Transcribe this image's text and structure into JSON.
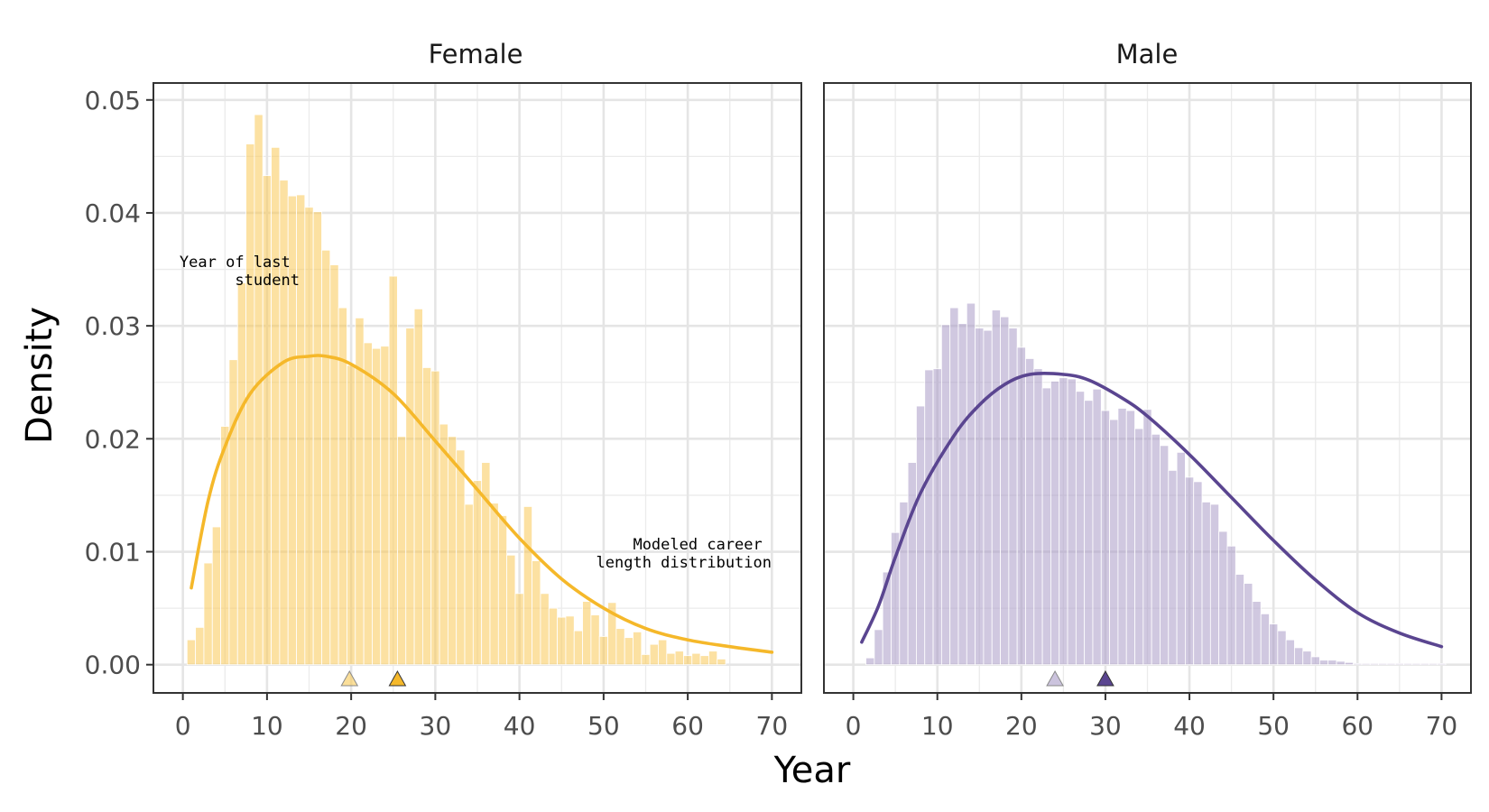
{
  "chart_data": {
    "type": "histogram",
    "xlabel": "Year",
    "ylabel": "Density",
    "xlim": [
      -3.5,
      73.5
    ],
    "ylim": [
      -0.0025,
      0.0515
    ],
    "x_ticks": [
      0,
      10,
      20,
      30,
      40,
      50,
      60,
      70
    ],
    "y_ticks": [
      0.0,
      0.01,
      0.02,
      0.03,
      0.04,
      0.05
    ],
    "x_tick_labels": [
      "0",
      "10",
      "20",
      "30",
      "40",
      "50",
      "60",
      "70"
    ],
    "y_tick_labels": [
      "0.00",
      "0.01",
      "0.02",
      "0.03",
      "0.04",
      "0.05"
    ],
    "annotations": {
      "last_student": [
        "Year of last",
        "student"
      ],
      "modeled": [
        "Modeled career",
        "length distribution"
      ]
    },
    "panels": [
      {
        "name": "Female",
        "bar_color": "#f9c956",
        "line_color": "#f5b82a",
        "bins_start": 1,
        "bin_width": 1,
        "densities": [
          0.0022,
          0.0033,
          0.009,
          0.0122,
          0.0211,
          0.027,
          0.0338,
          0.0461,
          0.0487,
          0.0433,
          0.0458,
          0.0429,
          0.0415,
          0.0416,
          0.0405,
          0.0401,
          0.0367,
          0.0354,
          0.0316,
          0.0265,
          0.0307,
          0.0285,
          0.028,
          0.0282,
          0.0344,
          0.0202,
          0.0298,
          0.0315,
          0.0263,
          0.026,
          0.0213,
          0.0202,
          0.019,
          0.0142,
          0.0163,
          0.0179,
          0.0143,
          0.0132,
          0.0097,
          0.0063,
          0.014,
          0.0092,
          0.0063,
          0.005,
          0.0042,
          0.0043,
          0.003,
          0.0056,
          0.0044,
          0.0025,
          0.0055,
          0.0032,
          0.0024,
          0.0029,
          0.0009,
          0.0018,
          0.0022,
          0.001,
          0.0012,
          0.0008,
          0.001,
          0.0008,
          0.0012,
          0.0005
        ],
        "curve": {
          "x": [
            1,
            3,
            5,
            8,
            12,
            15,
            17,
            20,
            25,
            30,
            35,
            40,
            45,
            50,
            55,
            60,
            65,
            70
          ],
          "y": [
            0.0068,
            0.0145,
            0.0193,
            0.024,
            0.0268,
            0.0273,
            0.0273,
            0.0266,
            0.024,
            0.0198,
            0.0155,
            0.0112,
            0.0076,
            0.005,
            0.0032,
            0.0022,
            0.0016,
            0.0011
          ]
        },
        "markers": [
          {
            "x": 19.8,
            "kind": "light"
          },
          {
            "x": 25.5,
            "kind": "dark"
          }
        ]
      },
      {
        "name": "Male",
        "bar_color": "#a99bc6",
        "line_color": "#5a4590",
        "bins_start": 2,
        "bin_width": 1,
        "densities": [
          0.0006,
          0.0031,
          0.0082,
          0.0117,
          0.0144,
          0.0179,
          0.0229,
          0.0261,
          0.0262,
          0.0301,
          0.0316,
          0.0302,
          0.032,
          0.0298,
          0.0296,
          0.0314,
          0.0308,
          0.0298,
          0.0281,
          0.0271,
          0.0262,
          0.0245,
          0.0251,
          0.0254,
          0.0253,
          0.0242,
          0.0234,
          0.0244,
          0.0225,
          0.0217,
          0.0227,
          0.0225,
          0.0209,
          0.0226,
          0.0204,
          0.0194,
          0.0172,
          0.0188,
          0.0166,
          0.0162,
          0.0144,
          0.0142,
          0.0118,
          0.0105,
          0.008,
          0.0072,
          0.0056,
          0.0045,
          0.0036,
          0.003,
          0.0022,
          0.0015,
          0.0012,
          0.0007,
          0.0004,
          0.0004,
          0.0003,
          0.0002,
          0.0001,
          0.0001,
          0.0001,
          0.0001,
          0.0001,
          0.0001,
          0.0001,
          0.0001,
          0.0001,
          0.0001,
          0.0001
        ],
        "curve": {
          "x": [
            1,
            3,
            5,
            8,
            12,
            15,
            18,
            21,
            25,
            28,
            32,
            35,
            40,
            45,
            50,
            55,
            60,
            65,
            70
          ],
          "y": [
            0.002,
            0.0052,
            0.0095,
            0.0152,
            0.0203,
            0.023,
            0.0248,
            0.0257,
            0.0257,
            0.0252,
            0.0236,
            0.022,
            0.0186,
            0.0148,
            0.011,
            0.0075,
            0.0046,
            0.0028,
            0.0016
          ]
        },
        "markers": [
          {
            "x": 24.0,
            "kind": "light"
          },
          {
            "x": 30.0,
            "kind": "dark"
          }
        ]
      }
    ]
  }
}
